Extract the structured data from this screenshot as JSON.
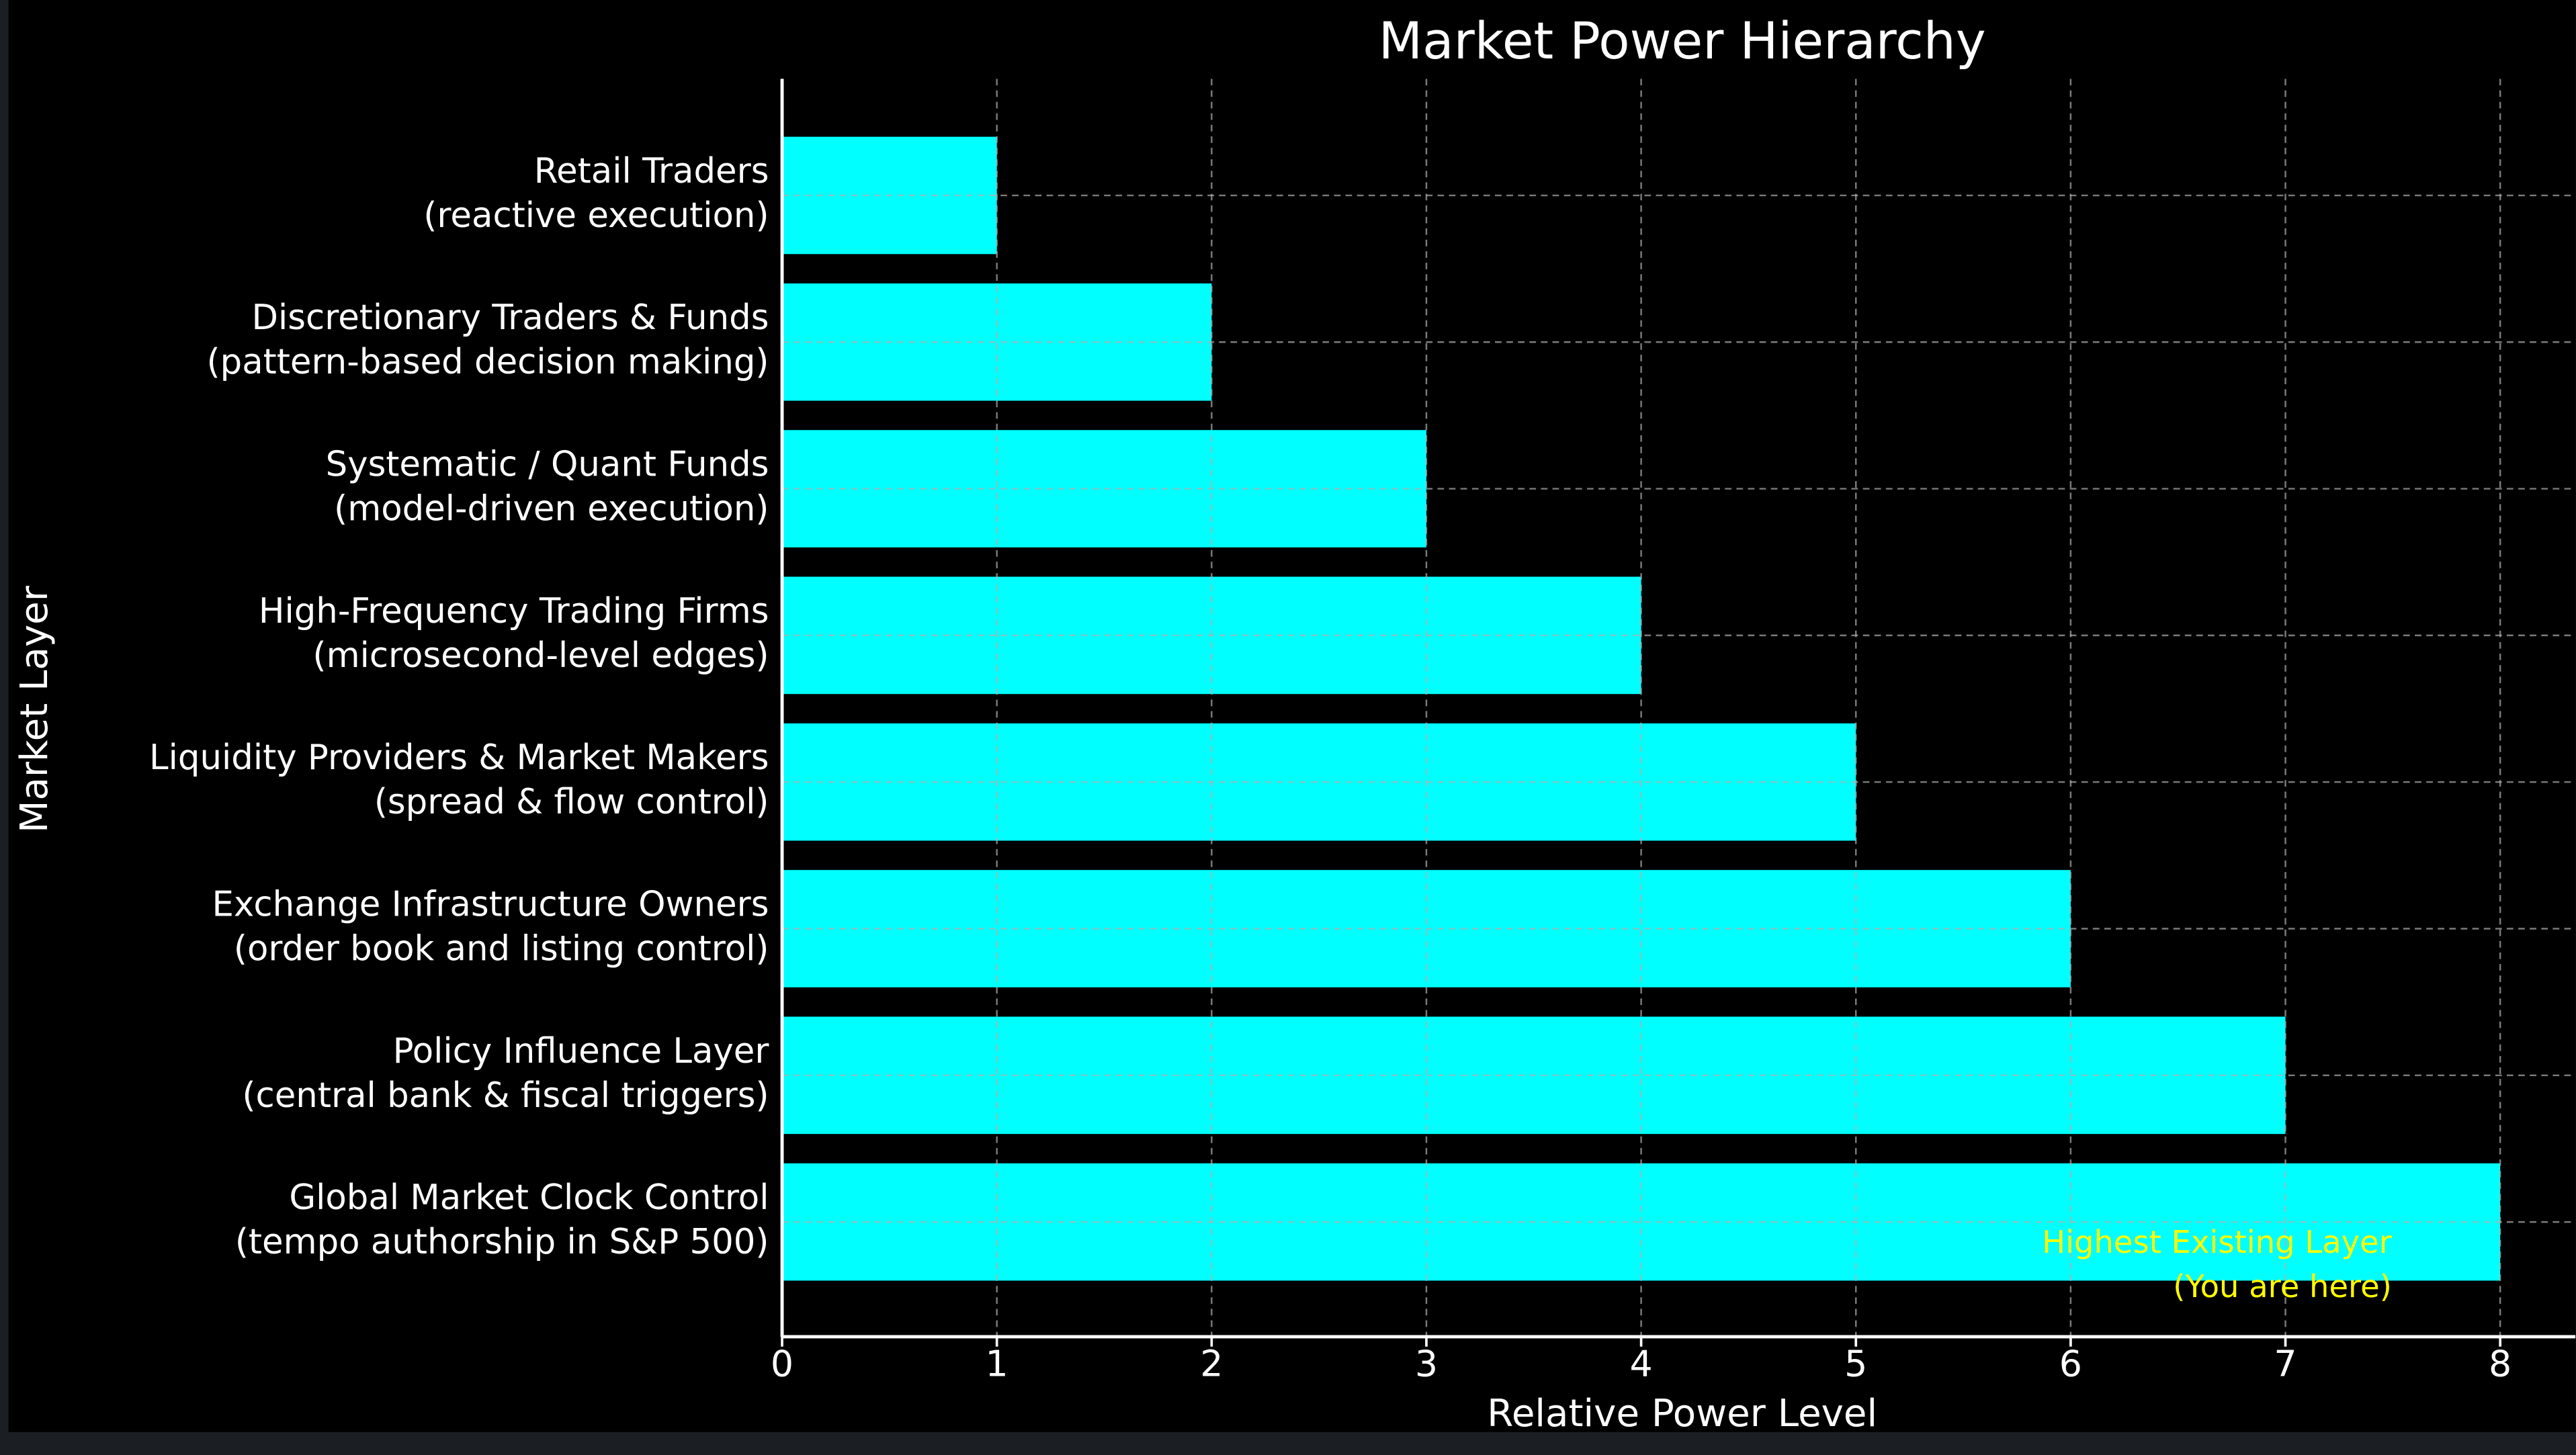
{
  "chart_data": {
    "type": "barh",
    "title": "Market Power Hierarchy",
    "xlabel": "Relative Power Level",
    "ylabel": "Market Layer",
    "categories": [
      "Retail Traders\n(reactive execution)",
      "Discretionary Traders & Funds\n(pattern-based decision making)",
      "Systematic / Quant Funds\n(model-driven execution)",
      "High-Frequency Trading Firms\n(microsecond-level edges)",
      "Liquidity Providers & Market Makers\n(spread & flow control)",
      "Exchange Infrastructure Owners\n(order book and listing control)",
      "Policy Influence Layer\n(central bank & fiscal triggers)",
      "Global Market Clock Control\n(tempo authorship in S&P 500)"
    ],
    "values": [
      1,
      2,
      3,
      4,
      5,
      6,
      7,
      8
    ],
    "color": "#00ffff",
    "xlim": [
      0,
      8.35
    ],
    "xticks": [
      0,
      1,
      2,
      3,
      4,
      5,
      6,
      7,
      8
    ],
    "grid": true,
    "annotation": {
      "text": "Highest Existing Layer\n(You are here)",
      "color": "#ffff00"
    }
  }
}
